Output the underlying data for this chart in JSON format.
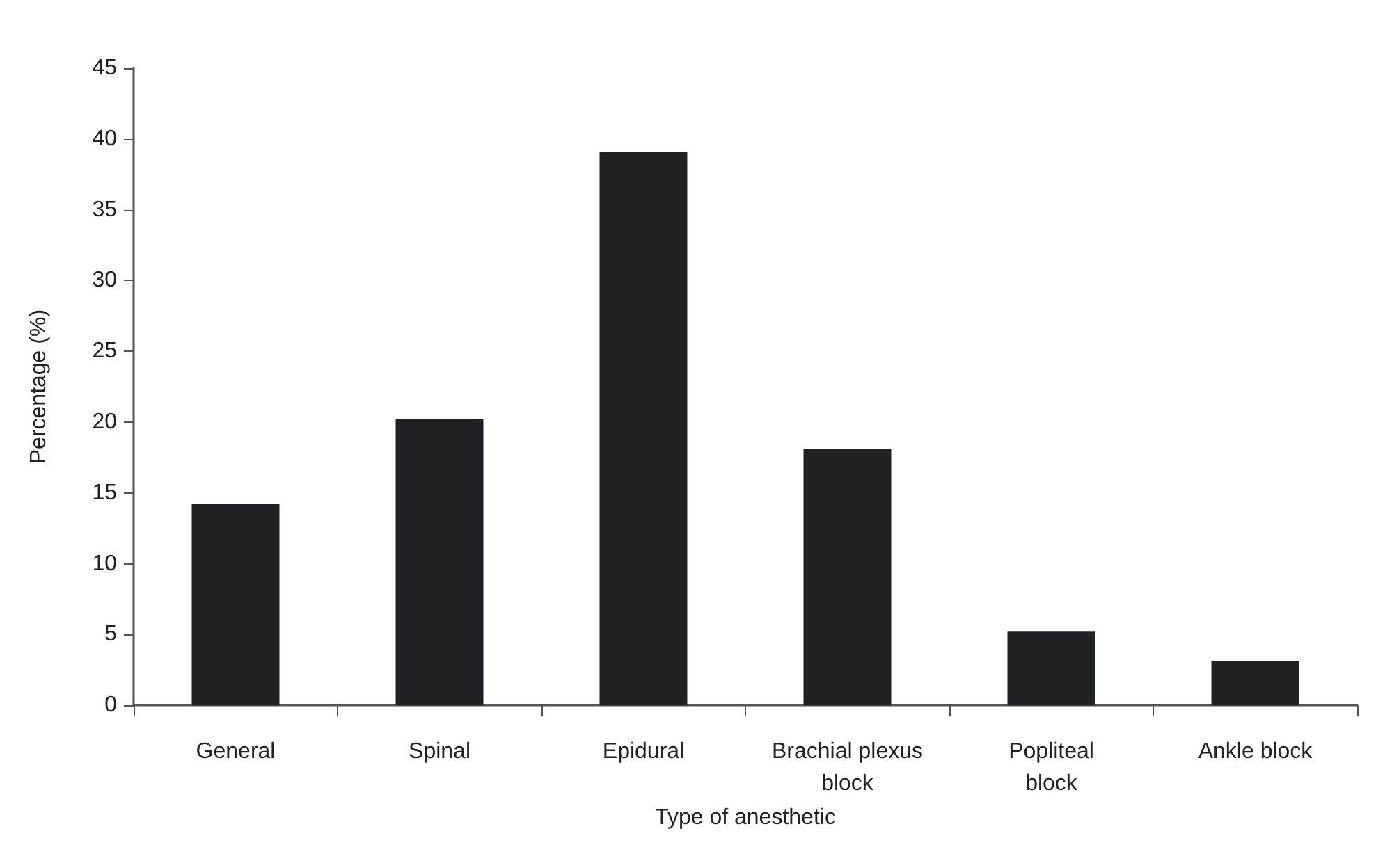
{
  "chart_data": {
    "type": "bar",
    "xlabel": "Type of anesthetic",
    "ylabel": "Percentage (%)",
    "categories": [
      "General",
      "Spinal",
      "Epidural",
      "Brachial plexus\nblock",
      "Popliteal\nblock",
      "Ankle block"
    ],
    "values": [
      14.2,
      20.2,
      39.1,
      18.1,
      5.2,
      3.1
    ],
    "color": "#202123",
    "ylim": [
      0,
      45
    ],
    "yticks": [
      0,
      5,
      10,
      15,
      20,
      25,
      30,
      35,
      40,
      45
    ],
    "grid": false
  }
}
